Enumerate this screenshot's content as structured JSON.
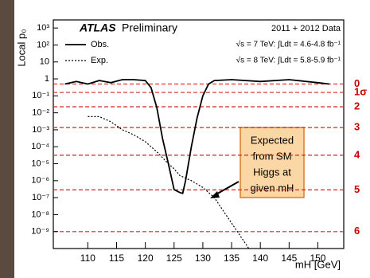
{
  "chart_data": {
    "type": "line",
    "log_y": true,
    "y_label": "Local p₀",
    "x_label": "mH [GeV]",
    "experiment": "ATLAS",
    "experiment_note": "Preliminary",
    "data_note": "2011 + 2012 Data",
    "lumi_lines": [
      "√s = 7 TeV: ∫Ldt = 4.6-4.8 fb⁻¹",
      "√s = 8 TeV: ∫Ldt = 5.8-5.9 fb⁻¹"
    ],
    "annotation": [
      "Expected",
      "from SM",
      "Higgs at",
      "given mH"
    ],
    "xlim": [
      104,
      154.5
    ],
    "xticks": [
      110,
      115,
      120,
      125,
      130,
      135,
      140,
      145,
      150
    ],
    "ylim": [
      1e-10,
      3000
    ],
    "yticks": [
      {
        "value": 1000,
        "label": "10³"
      },
      {
        "value": 100,
        "label": "10²"
      },
      {
        "value": 10,
        "label": "10"
      },
      1,
      {
        "value": 0.1,
        "label": "10⁻¹"
      },
      {
        "value": 0.01,
        "label": "10⁻²"
      },
      {
        "value": 0.001,
        "label": "10⁻³"
      },
      {
        "value": 0.0001,
        "label": "10⁻⁴"
      },
      {
        "value": 1e-05,
        "label": "10⁻⁵"
      },
      {
        "value": 1e-06,
        "label": "10⁻⁶"
      },
      {
        "value": 1e-07,
        "label": "10⁻⁷"
      },
      {
        "value": 1e-08,
        "label": "10⁻⁸"
      },
      {
        "value": 1e-09,
        "label": "10⁻⁹"
      }
    ],
    "sigma_lines": [
      {
        "value": 0.5,
        "label": "0"
      },
      {
        "value": 0.159,
        "label": "1σ"
      },
      {
        "value": 0.0228,
        "label": "2"
      },
      {
        "value": 0.00135,
        "label": "3"
      },
      {
        "value": 3.17e-05,
        "label": "4"
      },
      {
        "value": 2.87e-07,
        "label": "5"
      },
      {
        "value": 9.9e-10,
        "label": "6"
      }
    ],
    "series": [
      {
        "name": "Obs.",
        "color": "#000000",
        "dash": false,
        "x": [
          106,
          108,
          110,
          112,
          114,
          116,
          118,
          120,
          121,
          122,
          123,
          124,
          125,
          126,
          126.5,
          127,
          128,
          129,
          130,
          131,
          132,
          135,
          140,
          145,
          150,
          152
        ],
        "values": [
          0.5,
          0.7,
          0.5,
          0.8,
          0.6,
          0.9,
          0.9,
          0.8,
          0.3,
          0.02,
          0.0003,
          1e-05,
          3e-07,
          2e-07,
          1.8e-07,
          1e-06,
          0.0001,
          0.005,
          0.1,
          0.5,
          0.8,
          0.9,
          0.7,
          0.9,
          0.6,
          0.5
        ]
      },
      {
        "name": "Exp.",
        "color": "#000000",
        "dash": true,
        "x": [
          110,
          112,
          114,
          116,
          118,
          120,
          122,
          124,
          125,
          126,
          128,
          130,
          132,
          134,
          136,
          138
        ],
        "values": [
          0.006,
          0.006,
          0.003,
          0.001,
          0.0005,
          0.0002,
          5e-05,
          1e-05,
          5e-06,
          2e-06,
          1e-06,
          4e-07,
          1e-07,
          1e-08,
          1e-09,
          1e-10
        ]
      }
    ]
  }
}
